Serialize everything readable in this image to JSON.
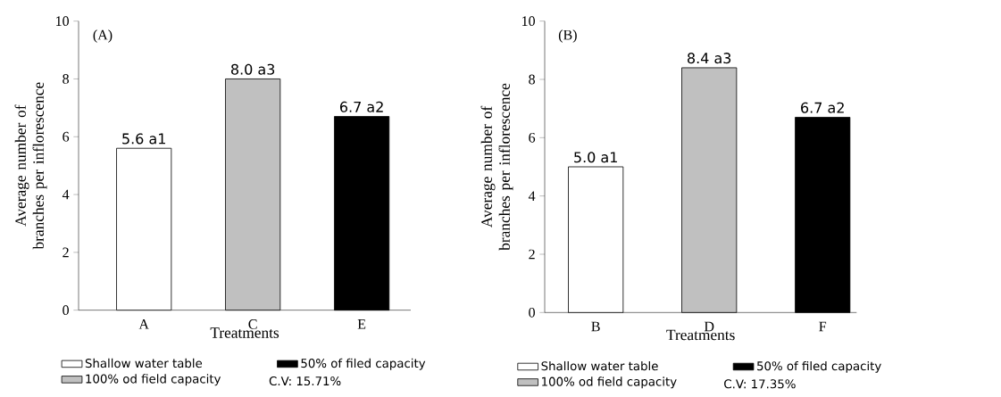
{
  "chart_data": [
    {
      "type": "bar",
      "categories": [
        "A",
        "C",
        "E"
      ],
      "xlabel": "Treatments",
      "ylabel": "Average number of branches per inflorescence",
      "ylim": [
        0,
        10
      ],
      "yticks": [
        0,
        2,
        4,
        6,
        8,
        10
      ],
      "legend": "bottom",
      "annotations": [
        "(A)",
        "C.V: 15.71%"
      ],
      "series": [
        {
          "name": "Shallow water table",
          "color": "#ffffff",
          "values": [
            5.6,
            null,
            null
          ],
          "value_labels": [
            "5.6 a1",
            null,
            null
          ]
        },
        {
          "name": "50% of filed capacity",
          "color": "#000000",
          "values": [
            null,
            null,
            6.7
          ],
          "value_labels": [
            null,
            null,
            "6.7 a2"
          ]
        },
        {
          "name": "100% od field capacity",
          "color": "#c0c0c0",
          "values": [
            null,
            8.0,
            null
          ],
          "value_labels": [
            null,
            "8.0 a3",
            null
          ]
        }
      ]
    },
    {
      "type": "bar",
      "categories": [
        "B",
        "D",
        "F"
      ],
      "xlabel": "Treatments",
      "ylabel": "Average number of branches per inflorescence",
      "ylim": [
        0,
        10
      ],
      "yticks": [
        0,
        2,
        4,
        6,
        8,
        10
      ],
      "legend": "bottom",
      "annotations": [
        "(B)",
        "C.V: 17.35%"
      ],
      "series": [
        {
          "name": "Shallow water table",
          "color": "#ffffff",
          "values": [
            5.0,
            null,
            null
          ],
          "value_labels": [
            "5.0 a1",
            null,
            null
          ]
        },
        {
          "name": "50% of filed capacity",
          "color": "#000000",
          "values": [
            null,
            null,
            6.7
          ],
          "value_labels": [
            null,
            null,
            "6.7 a2"
          ]
        },
        {
          "name": "100% od field capacity",
          "color": "#c0c0c0",
          "values": [
            null,
            8.4,
            null
          ],
          "value_labels": [
            null,
            "8.4 a3",
            null
          ]
        }
      ]
    }
  ]
}
